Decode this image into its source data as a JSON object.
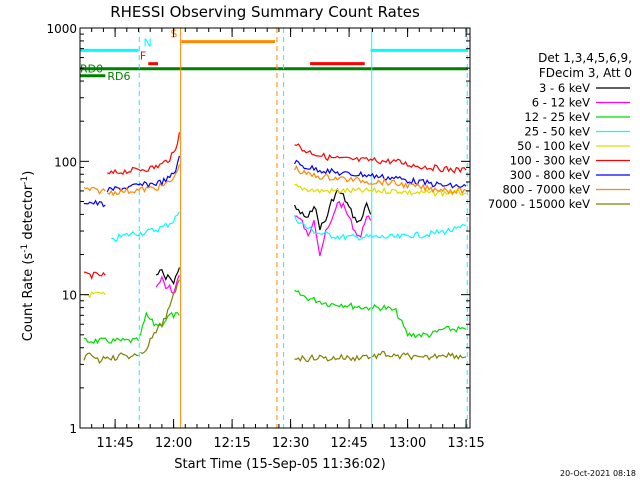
{
  "chart_data": {
    "type": "line",
    "title": "RHESSI Observing Summary Count Rates",
    "xlabel": "Start Time (15-Sep-05 11:36:02)",
    "ylabel_main": "Count Rate (s",
    "ylabel_sup": "-1",
    "ylabel_rest": " detector",
    "ylabel_end": ")",
    "yscale": "log",
    "ylim": [
      1,
      1000
    ],
    "xlim_min": [
      0,
      100
    ],
    "y_ticks": [
      {
        "value": 1000,
        "label": "1000"
      },
      {
        "value": 100,
        "label": "100"
      },
      {
        "value": 10,
        "label": "10"
      },
      {
        "value": 1,
        "label": "1"
      }
    ],
    "x_ticks": [
      {
        "value": 9,
        "label": "11:45"
      },
      {
        "value": 24,
        "label": "12:00"
      },
      {
        "value": 39,
        "label": "12:15"
      },
      {
        "value": 54,
        "label": "12:30"
      },
      {
        "value": 69,
        "label": "12:45"
      },
      {
        "value": 84,
        "label": "13:00"
      },
      {
        "value": 99,
        "label": "13:15"
      }
    ],
    "legend": {
      "header1": "Det 1,3,4,5,6,9,",
      "header2": "FDecim 3, Att 0",
      "entries": [
        {
          "label": "3 - 6 keV",
          "color": "#000000"
        },
        {
          "label": "6 - 12 keV",
          "color": "#ff00ff"
        },
        {
          "label": "12 - 25 keV",
          "color": "#00dd00"
        },
        {
          "label": "25 - 50 keV",
          "color": "#00ffff"
        },
        {
          "label": "50 - 100 keV",
          "color": "#dddd00"
        },
        {
          "label": "100 - 300 keV",
          "color": "#ff0000"
        },
        {
          "label": "300 - 800 keV",
          "color": "#0000ff"
        },
        {
          "label": "800 - 7000 keV",
          "color": "#ff8800"
        },
        {
          "label": "7000 - 15000 keV",
          "color": "#808000"
        }
      ]
    },
    "flag_bars": [
      {
        "label": "N",
        "color": "#00ffff",
        "y": 680,
        "segments": [
          [
            0,
            15
          ],
          [
            74.5,
            99.5
          ]
        ]
      },
      {
        "label": "F",
        "color": "#ff0000",
        "y": 540,
        "segments": [
          [
            17.5,
            20
          ]
        ]
      },
      {
        "label": "S",
        "color": "#ff8800",
        "y": 790,
        "segments": [
          [
            26,
            50
          ]
        ]
      },
      {
        "label": "",
        "color": "#ff0000",
        "y": 540,
        "segments": [
          [
            59,
            73
          ]
        ]
      },
      {
        "label": "RD0",
        "color": "#008000",
        "y": 495,
        "segments": [
          [
            0,
            99.5
          ]
        ]
      },
      {
        "label": "RD6",
        "color": "#008000",
        "y": 438,
        "segments": [
          [
            0,
            6.5
          ]
        ]
      }
    ],
    "vertical_lines": [
      {
        "x": 0,
        "color": "#00ffff",
        "style": "solid"
      },
      {
        "x": 15.2,
        "color": "#00ffff",
        "style": "dashed"
      },
      {
        "x": 25.8,
        "color": "#ff8800",
        "style": "solid"
      },
      {
        "x": 50.5,
        "color": "#ff8800",
        "style": "dashed"
      },
      {
        "x": 52.2,
        "color": "#00ffff",
        "style": "dashed"
      },
      {
        "x": 74.8,
        "color": "#00ffff",
        "style": "solid"
      },
      {
        "x": 99.3,
        "color": "#00ffff",
        "style": "dashed"
      }
    ],
    "series": [
      {
        "name": "3 - 6 keV",
        "color": "#000000",
        "segments": [
          {
            "x": [
              19.5,
              21,
              22,
              23,
              24,
              25,
              25.5
            ],
            "y": [
              14,
              15,
              13,
              14,
              12,
              15,
              16
            ]
          },
          {
            "x": [
              55,
              57,
              58.5,
              60,
              61.5,
              63,
              64.5,
              66,
              67.5,
              69,
              70.5,
              72,
              73.5,
              74.5
            ],
            "y": [
              45,
              40,
              37,
              48,
              32,
              36,
              50,
              60,
              55,
              45,
              37,
              35,
              50,
              40
            ]
          }
        ]
      },
      {
        "name": "6 - 12 keV",
        "color": "#ff00ff",
        "segments": [
          {
            "x": [
              19.5,
              21,
              22,
              23,
              24,
              25,
              25.5
            ],
            "y": [
              11,
              13,
              11,
              12,
              10,
              13,
              14
            ]
          },
          {
            "x": [
              55,
              57,
              58.5,
              60,
              61.5,
              63,
              64.5,
              66,
              67.5,
              69,
              70.5,
              72,
              73.5,
              74.5
            ],
            "y": [
              40,
              35,
              27,
              38,
              20,
              29,
              35,
              50,
              46,
              38,
              30,
              27,
              40,
              36
            ]
          }
        ]
      },
      {
        "name": "12 - 25 keV",
        "color": "#00dd00",
        "segments": [
          {
            "x": [
              1,
              3,
              5,
              7,
              9,
              11,
              13,
              15
            ],
            "y": [
              4.5,
              4.5,
              4.5,
              4.5,
              4.5,
              4.5,
              4.5,
              4.5
            ]
          },
          {
            "x": [
              15.5,
              17,
              19,
              21,
              23,
              25.5
            ],
            "y": [
              5,
              7,
              6,
              6,
              7,
              7
            ]
          },
          {
            "x": [
              55,
              58,
              61,
              64,
              67,
              70,
              73,
              74.5
            ],
            "y": [
              10.5,
              9.5,
              9,
              8.5,
              8.5,
              8.2,
              8,
              8
            ]
          },
          {
            "x": [
              75,
              78,
              81,
              84,
              87,
              90,
              93,
              96,
              99
            ],
            "y": [
              8,
              8,
              7.5,
              5,
              5,
              5,
              5.5,
              5.5,
              5.5
            ]
          }
        ]
      },
      {
        "name": "25 - 50 keV",
        "color": "#00ffff",
        "segments": [
          {
            "x": [
              8,
              10,
              12,
              14,
              16,
              18,
              20,
              22,
              24,
              25.5
            ],
            "y": [
              25,
              27,
              28,
              29,
              29,
              30,
              31,
              33,
              36,
              42
            ]
          },
          {
            "x": [
              55,
              58,
              61,
              64,
              67,
              70,
              73,
              76,
              79,
              82,
              85,
              88,
              91,
              94,
              97,
              99
            ],
            "y": [
              38,
              32,
              29,
              28,
              27,
              27,
              27,
              27,
              27,
              27,
              28,
              28,
              29,
              30,
              31,
              33
            ]
          }
        ]
      },
      {
        "name": "50 - 100 keV",
        "color": "#dddd00",
        "segments": [
          {
            "x": [
              1,
              3,
              5,
              6.5
            ],
            "y": [
              10,
              10,
              10,
              10
            ]
          },
          {
            "x": [
              55,
              58,
              61,
              64,
              67,
              70,
              73,
              76,
              79,
              82,
              85,
              88,
              91,
              94,
              97,
              99
            ],
            "y": [
              65,
              62,
              60,
              60,
              60,
              60,
              60,
              60,
              60,
              60,
              58,
              58,
              58,
              58,
              58,
              58
            ]
          }
        ]
      },
      {
        "name": "100 - 300 keV",
        "color": "#ff0000",
        "segments": [
          {
            "x": [
              1,
              3,
              5,
              6.5
            ],
            "y": [
              14,
              14,
              14,
              14
            ]
          },
          {
            "x": [
              7,
              9,
              11,
              13,
              15,
              17,
              19,
              21,
              23,
              24.5,
              25.5
            ],
            "y": [
              80,
              82,
              84,
              85,
              87,
              88,
              90,
              95,
              105,
              120,
              165
            ]
          },
          {
            "x": [
              55,
              57,
              60,
              63,
              66,
              69,
              72,
              75,
              78,
              81,
              84,
              87,
              90,
              93,
              96,
              99
            ],
            "y": [
              140,
              122,
              115,
              108,
              105,
              103,
              102,
              102,
              100,
              100,
              95,
              92,
              90,
              88,
              86,
              86
            ]
          }
        ]
      },
      {
        "name": "300 - 800 keV",
        "color": "#0000ff",
        "segments": [
          {
            "x": [
              1,
              3,
              5,
              6.5
            ],
            "y": [
              50,
              49,
              48,
              47
            ]
          },
          {
            "x": [
              7,
              9,
              11,
              13,
              15,
              17,
              19,
              21,
              23,
              24.5,
              25.5
            ],
            "y": [
              60,
              62,
              63,
              64,
              66,
              67,
              68,
              70,
              75,
              85,
              110
            ]
          },
          {
            "x": [
              55,
              57,
              60,
              63,
              66,
              69,
              72,
              75,
              78,
              81,
              84,
              87,
              90,
              93,
              96,
              99
            ],
            "y": [
              100,
              92,
              88,
              85,
              82,
              80,
              80,
              78,
              76,
              75,
              72,
              70,
              68,
              66,
              65,
              65
            ]
          }
        ]
      },
      {
        "name": "800 - 7000 keV",
        "color": "#ff8800",
        "segments": [
          {
            "x": [
              1,
              3,
              5,
              6.5
            ],
            "y": [
              62,
              61,
              60,
              60
            ]
          },
          {
            "x": [
              7,
              9,
              11,
              13,
              15,
              17,
              19,
              21,
              23,
              24.5,
              25.5
            ],
            "y": [
              58,
              59,
              60,
              60,
              61,
              62,
              63,
              65,
              70,
              78,
              95
            ]
          },
          {
            "x": [
              55,
              57,
              60,
              63,
              66,
              69,
              72,
              75,
              78,
              81,
              84,
              87,
              90,
              93,
              96,
              99
            ],
            "y": [
              90,
              82,
              78,
              76,
              75,
              73,
              72,
              70,
              70,
              68,
              66,
              64,
              62,
              62,
              60,
              60
            ]
          }
        ]
      },
      {
        "name": "7000 - 15000 keV",
        "color": "#808000",
        "segments": [
          {
            "x": [
              1,
              3,
              5,
              7,
              9,
              11,
              13,
              15
            ],
            "y": [
              3.3,
              3.6,
              3.2,
              3.5,
              3.3,
              3.6,
              3.4,
              3.5
            ]
          },
          {
            "x": [
              15.5,
              17,
              19,
              21,
              23,
              25.5
            ],
            "y": [
              3.5,
              4,
              5,
              6,
              8,
              13
            ]
          },
          {
            "x": [
              55,
              58,
              61,
              64,
              67,
              70,
              73,
              74.5
            ],
            "y": [
              3.4,
              3.3,
              3.4,
              3.3,
              3.4,
              3.3,
              3.5,
              3.4
            ]
          },
          {
            "x": [
              75,
              78,
              81,
              84,
              87,
              90,
              93,
              96,
              99
            ],
            "y": [
              3.4,
              3.6,
              3.4,
              3.5,
              3.3,
              3.4,
              3.6,
              3.5,
              3.4
            ]
          }
        ]
      }
    ],
    "footer_timestamp": "20-Oct-2021 08:18"
  }
}
